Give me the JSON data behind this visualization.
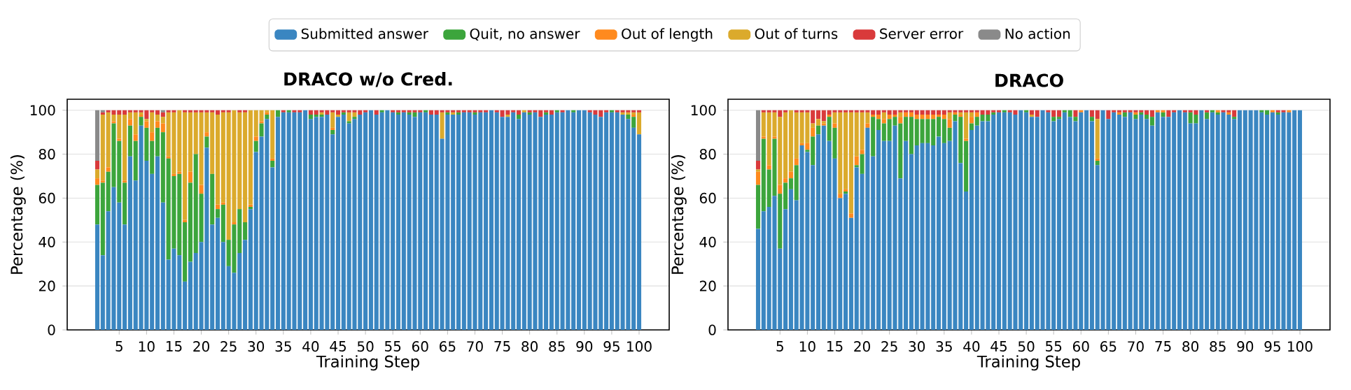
{
  "chart_data": [
    {
      "type": "bar",
      "title": "DRACO w/o Cred.",
      "xlabel": "Training Step",
      "ylabel": "Percentage (%)",
      "stacked": true,
      "grid": "y",
      "legend": "top",
      "xlim": [
        -4.5,
        105.5
      ],
      "ylim": [
        0,
        105
      ],
      "xticks": [
        5,
        10,
        15,
        20,
        25,
        30,
        35,
        40,
        45,
        50,
        55,
        60,
        65,
        70,
        75,
        80,
        85,
        90,
        95,
        100
      ],
      "yticks": [
        0,
        20,
        40,
        60,
        80,
        100
      ],
      "x": [
        1,
        2,
        3,
        4,
        5,
        6,
        7,
        8,
        9,
        10,
        11,
        12,
        13,
        14,
        15,
        16,
        17,
        18,
        19,
        20,
        21,
        22,
        23,
        24,
        25,
        26,
        27,
        28,
        29,
        30,
        31,
        32,
        33,
        34,
        35,
        36,
        37,
        38,
        39,
        40,
        41,
        42,
        43,
        44,
        45,
        46,
        47,
        48,
        49,
        50,
        51,
        52,
        53,
        54,
        55,
        56,
        57,
        58,
        59,
        60,
        61,
        62,
        63,
        64,
        65,
        66,
        67,
        68,
        69,
        70,
        71,
        72,
        73,
        74,
        75,
        76,
        77,
        78,
        79,
        80,
        81,
        82,
        83,
        84,
        85,
        86,
        87,
        88,
        89,
        90,
        91,
        92,
        93,
        94,
        95,
        96,
        97,
        98,
        99,
        100
      ],
      "series": [
        {
          "name": "Submitted answer",
          "color": "#3a86c1",
          "values": [
            48,
            34,
            54,
            65,
            58,
            48,
            79,
            68,
            93,
            77,
            71,
            79,
            58,
            32,
            37,
            34,
            22,
            31,
            35,
            40,
            83,
            48,
            51,
            40,
            29,
            26,
            35,
            41,
            55,
            81,
            88,
            96,
            74,
            97,
            99,
            99,
            99,
            99,
            100,
            96,
            97,
            97,
            98,
            89,
            97,
            98,
            94,
            96,
            98,
            99,
            100,
            98,
            99,
            100,
            99,
            98,
            99,
            98,
            97,
            99,
            99,
            98,
            98,
            87,
            98,
            98,
            98,
            99,
            99,
            98,
            99,
            99,
            100,
            99,
            97,
            97,
            99,
            96,
            99,
            98,
            99,
            97,
            98,
            98,
            99,
            99,
            100,
            99,
            100,
            100,
            99,
            98,
            97,
            99,
            99,
            99,
            98,
            96,
            92,
            89
          ]
        },
        {
          "name": "Quit, no answer",
          "color": "#3ca53c",
          "values": [
            18,
            33,
            18,
            29,
            28,
            19,
            14,
            18,
            4,
            15,
            15,
            13,
            32,
            46,
            33,
            37,
            27,
            36,
            45,
            22,
            5,
            23,
            4,
            17,
            12,
            22,
            20,
            8,
            1,
            5,
            6,
            2,
            3,
            3,
            0,
            1,
            0,
            0,
            0,
            2,
            1,
            1,
            0,
            2,
            0,
            1,
            1,
            1,
            0,
            0,
            0,
            0,
            1,
            0,
            0,
            1,
            0,
            1,
            2,
            0,
            1,
            0,
            0,
            0,
            1,
            0,
            1,
            0,
            0,
            1,
            0,
            0,
            0,
            0,
            0,
            0,
            0,
            2,
            0,
            1,
            0,
            0,
            1,
            0,
            1,
            0,
            0,
            1,
            0,
            0,
            0,
            0,
            0,
            0,
            1,
            0,
            0,
            2,
            5,
            0
          ]
        },
        {
          "name": "Out of length",
          "color": "#ff8a1e",
          "values": [
            3,
            1,
            2,
            1,
            1,
            1,
            3,
            3,
            1,
            3,
            4,
            3,
            4,
            1,
            1,
            1,
            1,
            5,
            0,
            4,
            2,
            0,
            2,
            1,
            0,
            1,
            0,
            0,
            1,
            2,
            1,
            1,
            1,
            0,
            0,
            0,
            0,
            0,
            0,
            0,
            0,
            0,
            0,
            1,
            0,
            0,
            0,
            0,
            0,
            0,
            0,
            0,
            0,
            0,
            0,
            0,
            0,
            0,
            0,
            0,
            0,
            0,
            0,
            0,
            0,
            0,
            0,
            0,
            0,
            0,
            0,
            0,
            0,
            0,
            0,
            0,
            0,
            0,
            0,
            0,
            0,
            0,
            0,
            0,
            0,
            0,
            0,
            0,
            0,
            0,
            0,
            0,
            0,
            0,
            0,
            0,
            0,
            0,
            1,
            0
          ]
        },
        {
          "name": "Out of turns",
          "color": "#dbaa2c",
          "values": [
            4,
            30,
            25,
            3,
            11,
            30,
            3,
            10,
            1,
            1,
            9,
            3,
            3,
            20,
            28,
            28,
            49,
            27,
            19,
            33,
            9,
            28,
            41,
            41,
            58,
            51,
            44,
            50,
            43,
            12,
            5,
            1,
            22,
            0,
            0,
            0,
            0,
            0,
            0,
            0,
            0,
            1,
            0,
            7,
            1,
            0,
            4,
            2,
            0,
            0,
            0,
            0,
            0,
            0,
            0,
            0,
            0,
            0,
            0,
            0,
            0,
            0,
            0,
            12,
            0,
            1,
            0,
            0,
            0,
            0,
            0,
            0,
            0,
            0,
            0,
            1,
            0,
            0,
            1,
            0,
            0,
            0,
            0,
            0,
            0,
            0,
            0,
            0,
            0,
            0,
            0,
            0,
            0,
            0,
            0,
            0,
            1,
            1,
            1,
            10
          ]
        },
        {
          "name": "Server error",
          "color": "#d93a3b",
          "values": [
            4,
            1,
            1,
            2,
            2,
            2,
            1,
            1,
            1,
            4,
            1,
            2,
            2,
            1,
            1,
            0,
            1,
            1,
            1,
            1,
            1,
            1,
            2,
            1,
            1,
            0,
            1,
            1,
            0,
            0,
            0,
            0,
            0,
            0,
            1,
            0,
            1,
            1,
            0,
            2,
            2,
            1,
            2,
            1,
            2,
            1,
            1,
            1,
            2,
            1,
            0,
            2,
            0,
            0,
            1,
            1,
            1,
            1,
            1,
            1,
            0,
            2,
            2,
            1,
            1,
            1,
            1,
            1,
            1,
            1,
            1,
            1,
            0,
            1,
            3,
            2,
            1,
            2,
            0,
            1,
            1,
            3,
            1,
            2,
            0,
            1,
            0,
            0,
            0,
            0,
            1,
            2,
            3,
            1,
            0,
            1,
            1,
            1,
            1,
            1
          ]
        },
        {
          "name": "No action",
          "color": "#8a8a8a",
          "values": [
            23,
            1,
            0,
            0,
            0,
            0,
            0,
            0,
            0,
            0,
            0,
            0,
            1,
            0,
            0,
            0,
            0,
            0,
            0,
            0,
            0,
            0,
            0,
            0,
            0,
            0,
            0,
            0,
            0,
            0,
            0,
            0,
            0,
            0,
            0,
            0,
            0,
            0,
            0,
            0,
            0,
            0,
            0,
            0,
            0,
            0,
            0,
            0,
            0,
            0,
            0,
            0,
            0,
            0,
            0,
            0,
            0,
            0,
            0,
            0,
            0,
            0,
            0,
            0,
            0,
            0,
            0,
            0,
            0,
            0,
            0,
            0,
            0,
            0,
            0,
            0,
            0,
            0,
            0,
            0,
            0,
            0,
            0,
            0,
            0,
            0,
            0,
            0,
            0,
            0,
            0,
            0,
            0,
            0,
            0,
            0,
            0,
            0,
            0,
            0
          ]
        }
      ]
    },
    {
      "type": "bar",
      "title": "DRACO",
      "xlabel": "Training Step",
      "ylabel": "Percentage (%)",
      "stacked": true,
      "grid": "y",
      "xlim": [
        -4.5,
        105.5
      ],
      "ylim": [
        0,
        105
      ],
      "xticks": [
        5,
        10,
        15,
        20,
        25,
        30,
        35,
        40,
        45,
        50,
        55,
        60,
        65,
        70,
        75,
        80,
        85,
        90,
        95,
        100
      ],
      "yticks": [
        0,
        20,
        40,
        60,
        80,
        100
      ],
      "x": [
        1,
        2,
        3,
        4,
        5,
        6,
        7,
        8,
        9,
        10,
        11,
        12,
        13,
        14,
        15,
        16,
        17,
        18,
        19,
        20,
        21,
        22,
        23,
        24,
        25,
        26,
        27,
        28,
        29,
        30,
        31,
        32,
        33,
        34,
        35,
        36,
        37,
        38,
        39,
        40,
        41,
        42,
        43,
        44,
        45,
        46,
        47,
        48,
        49,
        50,
        51,
        52,
        53,
        54,
        55,
        56,
        57,
        58,
        59,
        60,
        61,
        62,
        63,
        64,
        65,
        66,
        67,
        68,
        69,
        70,
        71,
        72,
        73,
        74,
        75,
        76,
        77,
        78,
        79,
        80,
        81,
        82,
        83,
        84,
        85,
        86,
        87,
        88,
        89,
        90,
        91,
        92,
        93,
        94,
        95,
        96,
        97,
        98,
        99,
        100
      ],
      "series": [
        {
          "color": "#3a86c1",
          "values": [
            46,
            54,
            56,
            61,
            37,
            55,
            64,
            59,
            84,
            81,
            75,
            89,
            93,
            86,
            78,
            60,
            62,
            51,
            74,
            71,
            92,
            79,
            91,
            86,
            86,
            93,
            69,
            86,
            80,
            84,
            85,
            85,
            84,
            88,
            85,
            86,
            95,
            76,
            63,
            91,
            93,
            95,
            95,
            98,
            99,
            99,
            99,
            98,
            100,
            99,
            97,
            97,
            100,
            99,
            95,
            96,
            99,
            97,
            95,
            99,
            100,
            95,
            75,
            100,
            96,
            99,
            98,
            97,
            99,
            96,
            98,
            96,
            93,
            99,
            97,
            97,
            99,
            100,
            99,
            94,
            94,
            100,
            96,
            99,
            98,
            99,
            98,
            96,
            100,
            100,
            100,
            100,
            99,
            98,
            99,
            98,
            99,
            99,
            100,
            100
          ]
        },
        {
          "color": "#3ca53c",
          "values": [
            20,
            33,
            17,
            26,
            25,
            12,
            5,
            16,
            0,
            1,
            13,
            4,
            0,
            11,
            14,
            0,
            1,
            0,
            1,
            9,
            0,
            18,
            5,
            8,
            10,
            4,
            25,
            11,
            17,
            12,
            11,
            11,
            12,
            9,
            11,
            6,
            3,
            21,
            23,
            3,
            4,
            3,
            3,
            1,
            0,
            1,
            0,
            0,
            0,
            1,
            0,
            0,
            0,
            0,
            2,
            1,
            1,
            3,
            2,
            0,
            0,
            2,
            2,
            0,
            0,
            0,
            0,
            2,
            0,
            2,
            1,
            2,
            4,
            0,
            2,
            0,
            0,
            0,
            0,
            5,
            4,
            0,
            3,
            1,
            1,
            0,
            0,
            1,
            0,
            0,
            0,
            0,
            1,
            2,
            0,
            1,
            0,
            0,
            0,
            0
          ]
        },
        {
          "color": "#ff8a1e",
          "values": [
            6,
            1,
            2,
            1,
            4,
            2,
            3,
            3,
            1,
            3,
            4,
            0,
            1,
            1,
            2,
            2,
            1,
            2,
            4,
            2,
            2,
            1,
            2,
            2,
            2,
            1,
            3,
            2,
            2,
            2,
            2,
            2,
            2,
            1,
            2,
            4,
            1,
            1,
            1,
            3,
            2,
            0,
            0,
            0,
            0,
            0,
            0,
            0,
            0,
            0,
            0,
            0,
            0,
            0,
            0,
            0,
            0,
            0,
            0,
            1,
            0,
            0,
            1,
            0,
            0,
            0,
            1,
            0,
            0,
            1,
            0,
            0,
            0,
            1,
            1,
            0,
            0,
            0,
            0,
            0,
            0,
            0,
            0,
            0,
            1,
            0,
            1,
            0,
            0,
            0,
            0,
            0,
            0,
            0,
            1,
            0,
            0,
            1,
            0,
            0
          ]
        },
        {
          "color": "#dbaa2c",
          "values": [
            1,
            11,
            24,
            11,
            31,
            30,
            28,
            21,
            14,
            14,
            2,
            3,
            1,
            0,
            5,
            37,
            35,
            46,
            20,
            17,
            5,
            0,
            0,
            3,
            0,
            0,
            2,
            0,
            0,
            0,
            0,
            0,
            0,
            0,
            0,
            3,
            0,
            1,
            12,
            2,
            0,
            0,
            0,
            0,
            0,
            0,
            0,
            0,
            0,
            0,
            1,
            0,
            0,
            0,
            0,
            0,
            0,
            0,
            0,
            0,
            0,
            0,
            18,
            0,
            0,
            0,
            0,
            0,
            0,
            0,
            0,
            0,
            0,
            0,
            0,
            0,
            0,
            0,
            0,
            0,
            0,
            0,
            0,
            0,
            0,
            0,
            0,
            0,
            0,
            0,
            0,
            0,
            0,
            0,
            0,
            0,
            0,
            0,
            0,
            0
          ]
        },
        {
          "color": "#d93a3b",
          "values": [
            4,
            1,
            1,
            1,
            3,
            1,
            0,
            1,
            1,
            1,
            6,
            4,
            5,
            2,
            1,
            1,
            1,
            1,
            1,
            1,
            1,
            2,
            2,
            1,
            2,
            2,
            1,
            1,
            1,
            2,
            2,
            2,
            2,
            2,
            2,
            1,
            1,
            1,
            1,
            1,
            1,
            2,
            2,
            1,
            1,
            0,
            1,
            2,
            0,
            0,
            2,
            3,
            0,
            1,
            3,
            3,
            0,
            0,
            3,
            0,
            0,
            3,
            4,
            0,
            4,
            1,
            1,
            1,
            1,
            1,
            1,
            2,
            3,
            0,
            0,
            3,
            1,
            0,
            1,
            1,
            2,
            0,
            1,
            0,
            0,
            1,
            1,
            3,
            0,
            0,
            0,
            0,
            0,
            0,
            0,
            1,
            1,
            0,
            0,
            0
          ]
        },
        {
          "color": "#8a8a8a",
          "values": [
            23,
            0,
            0,
            0,
            0,
            0,
            0,
            0,
            0,
            0,
            0,
            0,
            0,
            0,
            0,
            0,
            0,
            0,
            0,
            0,
            0,
            0,
            0,
            0,
            0,
            0,
            0,
            0,
            0,
            0,
            0,
            0,
            0,
            0,
            0,
            0,
            0,
            0,
            0,
            0,
            0,
            0,
            0,
            0,
            0,
            0,
            0,
            0,
            0,
            0,
            0,
            0,
            0,
            0,
            0,
            0,
            0,
            0,
            0,
            0,
            0,
            0,
            0,
            0,
            0,
            0,
            0,
            0,
            0,
            0,
            0,
            0,
            0,
            0,
            0,
            0,
            0,
            0,
            0,
            0,
            0,
            0,
            0,
            0,
            0,
            0,
            0,
            0,
            0,
            0,
            0,
            0,
            0,
            0,
            0,
            0,
            0,
            0,
            0,
            0
          ]
        }
      ]
    }
  ]
}
